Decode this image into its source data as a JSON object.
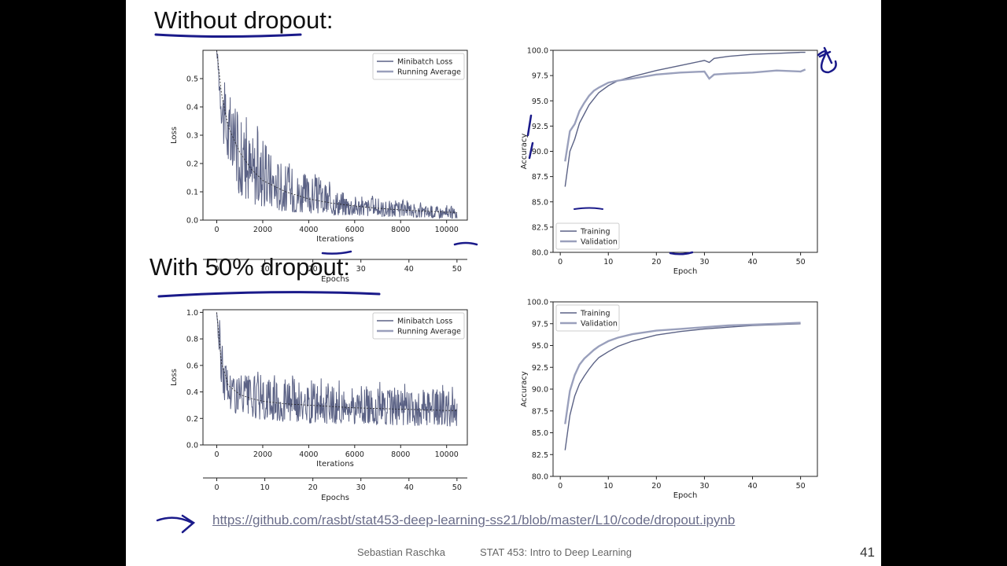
{
  "slide": {
    "heading_top": "Without dropout:",
    "heading_bottom": "With 50% dropout:",
    "link": "https://github.com/rasbt/stat453-deep-learning-ss21/blob/master/L10/code/dropout.ipynb",
    "author": "Sebastian Raschka",
    "course": "STAT 453: Intro to Deep Learning",
    "page_number": "41"
  },
  "colors": {
    "series": "#5b6285",
    "light_series": "#9aa0bc",
    "ink": "#1a1a8a"
  },
  "chart_data": [
    {
      "id": "loss_no_dropout",
      "type": "line",
      "xlabel": "Iterations",
      "ylabel": "Loss",
      "xlim": [
        -600,
        10900
      ],
      "ylim": [
        0.0,
        0.6
      ],
      "xticks": [
        0,
        2000,
        4000,
        6000,
        8000,
        10000
      ],
      "xtick_labels": [
        "0",
        "2000",
        "4000",
        "6000",
        "8000",
        "10000"
      ],
      "yticks": [
        0.0,
        0.1,
        0.2,
        0.3,
        0.4,
        0.5
      ],
      "ytick_labels": [
        "0.0",
        "0.1",
        "0.2",
        "0.3",
        "0.4",
        "0.5"
      ],
      "secondary_axis": {
        "label": "Epochs",
        "ticks": [
          0,
          10,
          20,
          30,
          40,
          50
        ],
        "tick_labels": [
          "0",
          "10",
          "20",
          "30",
          "40",
          "50"
        ],
        "iterations_per_epoch": 209
      },
      "legend": {
        "position": "top-right",
        "entries": [
          "Minibatch Loss",
          "Running Average"
        ]
      },
      "series": [
        {
          "name": "Minibatch Loss",
          "x": [
            0,
            100,
            200,
            300,
            500,
            700,
            1000,
            1500,
            2000,
            2500,
            3000,
            4000,
            5000,
            6000,
            7000,
            8000,
            9000,
            10000,
            10450
          ],
          "low": [
            0.6,
            0.45,
            0.34,
            0.26,
            0.18,
            0.13,
            0.09,
            0.06,
            0.045,
            0.035,
            0.03,
            0.022,
            0.018,
            0.015,
            0.012,
            0.01,
            0.008,
            0.006,
            0.005
          ],
          "high": [
            0.6,
            0.58,
            0.55,
            0.5,
            0.44,
            0.4,
            0.37,
            0.32,
            0.28,
            0.24,
            0.2,
            0.16,
            0.12,
            0.09,
            0.075,
            0.065,
            0.055,
            0.048,
            0.045
          ]
        },
        {
          "name": "Running Average",
          "x": [
            0,
            200,
            500,
            1000,
            1500,
            2000,
            3000,
            4000,
            5000,
            6000,
            7000,
            8000,
            9000,
            10000,
            10450
          ],
          "y": [
            0.6,
            0.45,
            0.33,
            0.24,
            0.18,
            0.14,
            0.1,
            0.075,
            0.06,
            0.05,
            0.042,
            0.036,
            0.032,
            0.028,
            0.027
          ]
        }
      ]
    },
    {
      "id": "acc_no_dropout",
      "type": "line",
      "xlabel": "Epoch",
      "ylabel": "Accuracy",
      "xlim": [
        -1.5,
        53.5
      ],
      "ylim": [
        80.0,
        100.0
      ],
      "xticks": [
        0,
        10,
        20,
        30,
        40,
        50
      ],
      "xtick_labels": [
        "0",
        "10",
        "20",
        "30",
        "40",
        "50"
      ],
      "yticks": [
        80.0,
        82.5,
        85.0,
        87.5,
        90.0,
        92.5,
        95.0,
        97.5,
        100.0
      ],
      "ytick_labels": [
        "80.0",
        "82.5",
        "85.0",
        "87.5",
        "90.0",
        "92.5",
        "95.0",
        "97.5",
        "100.0"
      ],
      "legend": {
        "position": "lower-left",
        "entries": [
          "Training",
          "Validation"
        ]
      },
      "series": [
        {
          "name": "Training",
          "x": [
            1,
            2,
            3,
            4,
            5,
            6,
            7,
            8,
            10,
            12,
            15,
            20,
            25,
            30,
            31,
            32,
            35,
            40,
            45,
            50,
            51
          ],
          "y": [
            86.5,
            90.0,
            91.2,
            92.8,
            93.7,
            94.6,
            95.2,
            95.8,
            96.5,
            97.0,
            97.4,
            98.0,
            98.5,
            99.0,
            98.8,
            99.2,
            99.4,
            99.6,
            99.7,
            99.8,
            99.8
          ]
        },
        {
          "name": "Validation",
          "x": [
            1,
            2,
            3,
            4,
            5,
            6,
            7,
            8,
            10,
            12,
            15,
            20,
            25,
            30,
            31,
            32,
            35,
            40,
            45,
            50,
            51
          ],
          "y": [
            89.0,
            92.0,
            92.7,
            94.0,
            94.8,
            95.5,
            96.0,
            96.3,
            96.8,
            97.0,
            97.2,
            97.6,
            97.8,
            97.9,
            97.2,
            97.6,
            97.7,
            97.8,
            98.0,
            97.9,
            98.1
          ]
        }
      ]
    },
    {
      "id": "loss_dropout",
      "type": "line",
      "xlabel": "Iterations",
      "ylabel": "Loss",
      "xlim": [
        -600,
        10900
      ],
      "ylim": [
        0.0,
        1.02
      ],
      "xticks": [
        0,
        2000,
        4000,
        6000,
        8000,
        10000
      ],
      "xtick_labels": [
        "0",
        "2000",
        "4000",
        "6000",
        "8000",
        "10000"
      ],
      "yticks": [
        0.0,
        0.2,
        0.4,
        0.6,
        0.8,
        1.0
      ],
      "ytick_labels": [
        "0.0",
        "0.2",
        "0.4",
        "0.6",
        "0.8",
        "1.0"
      ],
      "secondary_axis": {
        "label": "Epochs",
        "ticks": [
          0,
          10,
          20,
          30,
          40,
          50
        ],
        "tick_labels": [
          "0",
          "10",
          "20",
          "30",
          "40",
          "50"
        ],
        "iterations_per_epoch": 209
      },
      "legend": {
        "position": "top-right",
        "entries": [
          "Minibatch Loss",
          "Running Average"
        ]
      },
      "series": [
        {
          "name": "Minibatch Loss",
          "x": [
            0,
            100,
            200,
            300,
            500,
            700,
            1000,
            1500,
            2000,
            3000,
            4000,
            5000,
            6000,
            7000,
            8000,
            9000,
            10000,
            10450
          ],
          "low": [
            1.0,
            0.65,
            0.45,
            0.35,
            0.28,
            0.25,
            0.22,
            0.2,
            0.19,
            0.17,
            0.16,
            0.16,
            0.15,
            0.15,
            0.15,
            0.14,
            0.14,
            0.14
          ],
          "high": [
            1.0,
            0.98,
            0.85,
            0.75,
            0.62,
            0.58,
            0.55,
            0.52,
            0.5,
            0.48,
            0.47,
            0.46,
            0.45,
            0.44,
            0.43,
            0.42,
            0.42,
            0.4
          ]
        },
        {
          "name": "Running Average",
          "x": [
            0,
            200,
            500,
            1000,
            1500,
            2000,
            3000,
            4000,
            5000,
            6000,
            7000,
            8000,
            9000,
            10000,
            10450
          ],
          "y": [
            1.0,
            0.62,
            0.45,
            0.38,
            0.35,
            0.33,
            0.31,
            0.3,
            0.29,
            0.28,
            0.275,
            0.27,
            0.265,
            0.26,
            0.26
          ]
        }
      ]
    },
    {
      "id": "acc_dropout",
      "type": "line",
      "xlabel": "Epoch",
      "ylabel": "Accuracy",
      "xlim": [
        -1.5,
        53.5
      ],
      "ylim": [
        80.0,
        100.0
      ],
      "xticks": [
        0,
        10,
        20,
        30,
        40,
        50
      ],
      "xtick_labels": [
        "0",
        "10",
        "20",
        "30",
        "40",
        "50"
      ],
      "yticks": [
        80.0,
        82.5,
        85.0,
        87.5,
        90.0,
        92.5,
        95.0,
        97.5,
        100.0
      ],
      "ytick_labels": [
        "80.0",
        "82.5",
        "85.0",
        "87.5",
        "90.0",
        "92.5",
        "95.0",
        "97.5",
        "100.0"
      ],
      "legend": {
        "position": "top-left",
        "entries": [
          "Training",
          "Validation"
        ]
      },
      "series": [
        {
          "name": "Training",
          "x": [
            1,
            2,
            3,
            4,
            5,
            6,
            7,
            8,
            10,
            12,
            15,
            20,
            25,
            30,
            35,
            40,
            45,
            50
          ],
          "y": [
            83.0,
            87.0,
            89.2,
            90.6,
            91.5,
            92.3,
            93.0,
            93.6,
            94.3,
            94.9,
            95.5,
            96.2,
            96.6,
            96.9,
            97.1,
            97.3,
            97.4,
            97.5
          ]
        },
        {
          "name": "Validation",
          "x": [
            1,
            2,
            3,
            4,
            5,
            6,
            7,
            8,
            10,
            12,
            15,
            20,
            25,
            30,
            35,
            40,
            45,
            50
          ],
          "y": [
            86.0,
            89.8,
            91.6,
            92.8,
            93.5,
            94.0,
            94.5,
            94.9,
            95.5,
            95.9,
            96.3,
            96.7,
            96.9,
            97.1,
            97.3,
            97.4,
            97.5,
            97.6
          ]
        }
      ]
    }
  ]
}
